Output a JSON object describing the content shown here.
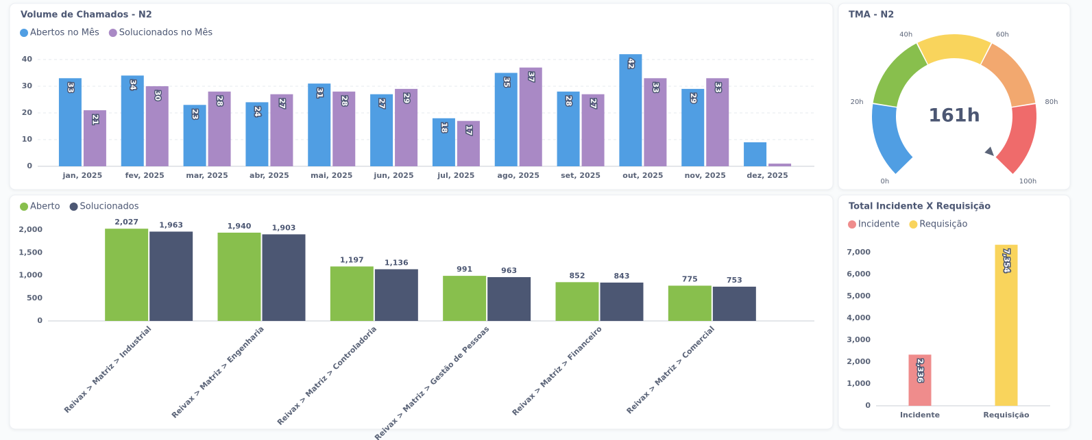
{
  "chart_data": [
    {
      "type": "bar",
      "title": "Volume de Chamados - N2",
      "grid": true,
      "categories": [
        "jan, 2025",
        "fev, 2025",
        "mar, 2025",
        "abr, 2025",
        "mai, 2025",
        "jun, 2025",
        "jul, 2025",
        "ago, 2025",
        "set, 2025",
        "out, 2025",
        "nov, 2025",
        "dez, 2025"
      ],
      "series": [
        {
          "name": "Abertos no Mês",
          "color": "#509ee3",
          "values": [
            33,
            34,
            23,
            24,
            31,
            27,
            18,
            35,
            28,
            42,
            29,
            9
          ]
        },
        {
          "name": "Solucionados no Mês",
          "color": "#a989c5",
          "values": [
            21,
            30,
            28,
            27,
            28,
            29,
            17,
            37,
            27,
            33,
            33,
            1
          ]
        }
      ],
      "ylim": [
        0,
        45
      ],
      "yticks": [
        0,
        10,
        20,
        30,
        40
      ]
    },
    {
      "type": "gauge",
      "title": "TMA - N2",
      "value": 161,
      "value_label": "161h",
      "range": [
        0,
        100
      ],
      "ticks": [
        {
          "value": 0,
          "label": "0h"
        },
        {
          "value": 20,
          "label": "20h"
        },
        {
          "value": 40,
          "label": "40h"
        },
        {
          "value": 60,
          "label": "60h"
        },
        {
          "value": 80,
          "label": "80h"
        },
        {
          "value": 100,
          "label": "100h"
        }
      ],
      "segments": [
        {
          "min": 0,
          "max": 20,
          "color": "#509ee3"
        },
        {
          "min": 20,
          "max": 40,
          "color": "#88bf4d"
        },
        {
          "min": 40,
          "max": 60,
          "color": "#f9d45c"
        },
        {
          "min": 60,
          "max": 80,
          "color": "#f2a86f"
        },
        {
          "min": 80,
          "max": 100,
          "color": "#ef6b6b"
        }
      ]
    },
    {
      "type": "bar",
      "grid": false,
      "categories": [
        "Reivax > Matriz > Industrial",
        "Reivax > Matriz > Engenharia",
        "Reivax > Matriz > Controladoria",
        "Reivax > Matriz > Gestão de Pessoas",
        "Reivax > Matriz > Financeiro",
        "Reivax > Matriz > Comercial"
      ],
      "series": [
        {
          "name": "Aberto",
          "color": "#88bf4d",
          "values": [
            2027,
            1940,
            1197,
            991,
            852,
            775
          ],
          "value_labels": [
            "2,027",
            "1,940",
            "1,197",
            "991",
            "852",
            "775"
          ]
        },
        {
          "name": "Solucionados",
          "color": "#4c5773",
          "values": [
            1963,
            1903,
            1136,
            963,
            843,
            753
          ],
          "value_labels": [
            "1,963",
            "1,903",
            "1,136",
            "963",
            "843",
            "753"
          ]
        }
      ],
      "ylim": [
        0,
        2200
      ],
      "yticks": [
        0,
        500,
        {
          "value": 1000,
          "label": "1,000"
        },
        {
          "value": 1500,
          "label": "1,500"
        },
        {
          "value": 2000,
          "label": "2,000"
        }
      ]
    },
    {
      "type": "bar",
      "title": "Total Incidente X Requisição",
      "grid": false,
      "categories": [
        "Incidente",
        "Requisição"
      ],
      "series": [
        {
          "name": "Incidente",
          "color": "#ef8c8c",
          "values": [
            2336,
            null
          ],
          "value_labels": [
            "2,336",
            null
          ]
        },
        {
          "name": "Requisição",
          "color": "#f9d45c",
          "values": [
            null,
            7354
          ],
          "value_labels": [
            null,
            "7,354"
          ]
        }
      ],
      "ylim": [
        0,
        7500
      ],
      "yticks": [
        0,
        {
          "value": 1000,
          "label": "1,000"
        },
        {
          "value": 2000,
          "label": "2,000"
        },
        {
          "value": 3000,
          "label": "3,000"
        },
        {
          "value": 4000,
          "label": "4,000"
        },
        {
          "value": 5000,
          "label": "5,000"
        },
        {
          "value": 6000,
          "label": "6,000"
        },
        {
          "value": 7000,
          "label": "7,000"
        }
      ]
    }
  ]
}
